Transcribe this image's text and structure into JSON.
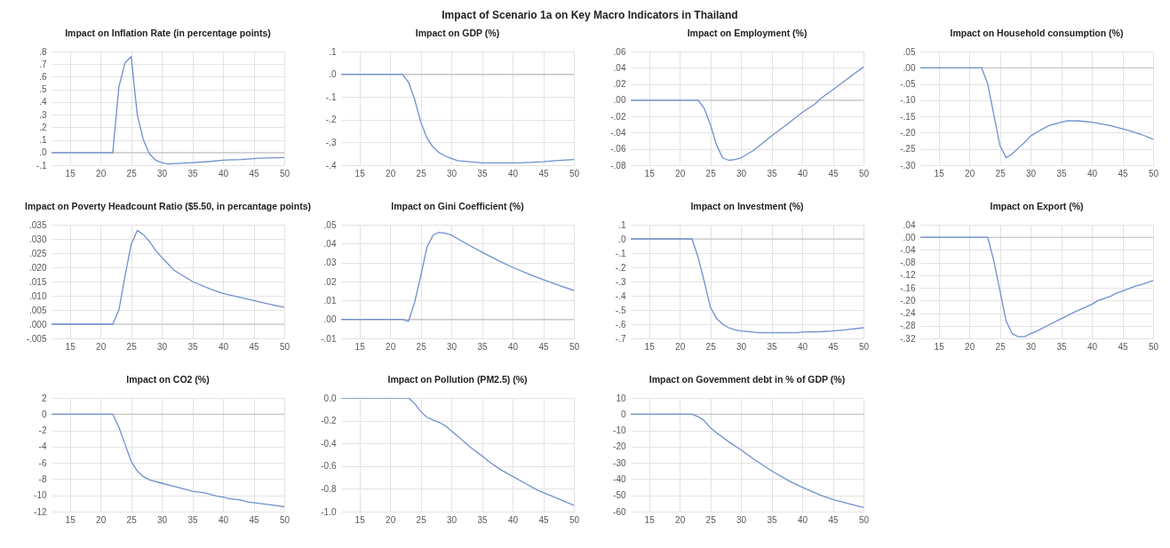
{
  "chart_data": [
    {
      "type": "other",
      "title": "Impact of Scenario 1a on Key Macro Indicators in Thailand"
    },
    {
      "type": "line",
      "title": "Impact on Inflation Rate (in percentage points)",
      "color": "#6f8fcf",
      "grid": true,
      "x": [
        12,
        22,
        23,
        24,
        25,
        26,
        27,
        28,
        29,
        30,
        31,
        33,
        35,
        38,
        40,
        43,
        46,
        50
      ],
      "values": [
        0,
        0,
        0.52,
        0.71,
        0.76,
        0.3,
        0.1,
        -0.01,
        -0.06,
        -0.08,
        -0.09,
        -0.085,
        -0.08,
        -0.07,
        -0.06,
        -0.055,
        -0.045,
        -0.04
      ],
      "xlim": [
        12,
        50
      ],
      "xticks": [
        15,
        20,
        25,
        30,
        35,
        40,
        45,
        50
      ],
      "ylim": [
        -0.1,
        0.8
      ],
      "yticks": [
        {
          "value": -0.1,
          "label": "-.1"
        },
        {
          "value": 0,
          "label": ".0"
        },
        {
          "value": 0.1,
          "label": ".1"
        },
        {
          "value": 0.2,
          "label": ".2"
        },
        {
          "value": 0.3,
          "label": ".3"
        },
        {
          "value": 0.4,
          "label": ".4"
        },
        {
          "value": 0.5,
          "label": ".5"
        },
        {
          "value": 0.6,
          "label": ".6"
        },
        {
          "value": 0.7,
          "label": ".7"
        },
        {
          "value": 0.8,
          "label": ".8"
        }
      ],
      "ref_lines": [
        {
          "axis": "y",
          "value": 0,
          "color": "#bfbfbf"
        }
      ]
    },
    {
      "type": "line",
      "title": "Impact on GDP (%)",
      "color": "#6f8fcf",
      "grid": true,
      "x": [
        12,
        22,
        23,
        24,
        25,
        26,
        27,
        28,
        29,
        30,
        31,
        33,
        35,
        41,
        45,
        47,
        50
      ],
      "values": [
        0,
        0,
        -0.035,
        -0.11,
        -0.21,
        -0.28,
        -0.32,
        -0.345,
        -0.36,
        -0.37,
        -0.38,
        -0.385,
        -0.39,
        -0.39,
        -0.385,
        -0.38,
        -0.375
      ],
      "xlim": [
        12,
        50
      ],
      "xticks": [
        15,
        20,
        25,
        30,
        35,
        40,
        45,
        50
      ],
      "ylim": [
        -0.4,
        0.1
      ],
      "yticks": [
        {
          "value": -0.4,
          "label": "-.4"
        },
        {
          "value": -0.3,
          "label": "-.3"
        },
        {
          "value": -0.2,
          "label": "-.2"
        },
        {
          "value": -0.1,
          "label": "-.1"
        },
        {
          "value": 0,
          "label": ".0"
        },
        {
          "value": 0.1,
          "label": ".1"
        }
      ],
      "ref_lines": [
        {
          "axis": "y",
          "value": 0,
          "color": "#bfbfbf"
        }
      ]
    },
    {
      "type": "line",
      "title": "Impact on Employment (%)",
      "color": "#6f8fcf",
      "grid": true,
      "x": [
        12,
        23,
        24,
        25,
        26,
        27,
        28,
        29,
        30,
        32,
        35,
        38,
        40,
        42,
        43,
        45,
        48,
        50
      ],
      "values": [
        0,
        0,
        -0.01,
        -0.03,
        -0.055,
        -0.071,
        -0.074,
        -0.073,
        -0.071,
        -0.062,
        -0.044,
        -0.027,
        -0.015,
        -0.005,
        0.002,
        0.013,
        0.03,
        0.041
      ],
      "xlim": [
        12,
        50
      ],
      "xticks": [
        15,
        20,
        25,
        30,
        35,
        40,
        45,
        50
      ],
      "ylim": [
        -0.08,
        0.06
      ],
      "yticks": [
        {
          "value": -0.08,
          "label": "-.08"
        },
        {
          "value": -0.06,
          "label": "-.06"
        },
        {
          "value": -0.04,
          "label": "-.04"
        },
        {
          "value": -0.02,
          "label": "-.02"
        },
        {
          "value": 0,
          "label": ".00"
        },
        {
          "value": 0.02,
          "label": ".02"
        },
        {
          "value": 0.04,
          "label": ".04"
        },
        {
          "value": 0.06,
          "label": ".06"
        }
      ],
      "ref_lines": [
        {
          "axis": "y",
          "value": 0,
          "color": "#bfbfbf"
        }
      ]
    },
    {
      "type": "line",
      "title": "Impact on Household consumption (%)",
      "color": "#6f8fcf",
      "grid": true,
      "x": [
        12,
        22,
        23,
        24,
        25,
        26,
        27,
        28,
        29,
        30,
        32,
        33,
        35,
        36,
        38,
        40,
        43,
        46,
        48,
        50
      ],
      "values": [
        0,
        0,
        -0.05,
        -0.145,
        -0.24,
        -0.277,
        -0.265,
        -0.247,
        -0.23,
        -0.21,
        -0.188,
        -0.178,
        -0.168,
        -0.163,
        -0.164,
        -0.168,
        -0.178,
        -0.193,
        -0.205,
        -0.22
      ],
      "xlim": [
        12,
        50
      ],
      "xticks": [
        15,
        20,
        25,
        30,
        35,
        40,
        45,
        50
      ],
      "ylim": [
        -0.3,
        0.05
      ],
      "yticks": [
        {
          "value": -0.3,
          "label": "-.30"
        },
        {
          "value": -0.25,
          "label": "-.25"
        },
        {
          "value": -0.2,
          "label": "-.20"
        },
        {
          "value": -0.15,
          "label": "-.15"
        },
        {
          "value": -0.1,
          "label": "-.10"
        },
        {
          "value": -0.05,
          "label": "-.05"
        },
        {
          "value": 0,
          "label": ".00"
        },
        {
          "value": 0.05,
          "label": ".05"
        }
      ],
      "ref_lines": [
        {
          "axis": "y",
          "value": 0,
          "color": "#bfbfbf"
        }
      ]
    },
    {
      "type": "line",
      "title": "Impact on Poverty Headcount Ratio ($5.50, in percantage points)",
      "color": "#6f8fcf",
      "grid": true,
      "x": [
        12,
        22,
        23,
        24,
        25,
        26,
        27,
        28,
        29,
        30,
        32,
        35,
        38,
        40,
        43,
        45,
        48,
        50
      ],
      "values": [
        0,
        0,
        0.005,
        0.017,
        0.028,
        0.033,
        0.0315,
        0.029,
        0.026,
        0.0235,
        0.019,
        0.015,
        0.0123,
        0.0108,
        0.0093,
        0.0083,
        0.0068,
        0.006
      ],
      "xlim": [
        12,
        50
      ],
      "xticks": [
        15,
        20,
        25,
        30,
        35,
        40,
        45,
        50
      ],
      "ylim": [
        -0.005,
        0.035
      ],
      "yticks": [
        {
          "value": -0.005,
          "label": "-.005"
        },
        {
          "value": 0,
          "label": ".000"
        },
        {
          "value": 0.005,
          "label": ".005"
        },
        {
          "value": 0.01,
          "label": ".010"
        },
        {
          "value": 0.015,
          "label": ".015"
        },
        {
          "value": 0.02,
          "label": ".020"
        },
        {
          "value": 0.025,
          "label": ".025"
        },
        {
          "value": 0.03,
          "label": ".030"
        },
        {
          "value": 0.035,
          "label": ".035"
        }
      ],
      "ref_lines": [
        {
          "axis": "y",
          "value": 0,
          "color": "#bfbfbf"
        }
      ]
    },
    {
      "type": "line",
      "title": "Impact on Gini Coefficient (%)",
      "color": "#6f8fcf",
      "grid": true,
      "x": [
        12,
        22,
        23,
        24,
        25,
        26,
        27,
        28,
        29,
        30,
        33,
        35,
        38,
        40,
        43,
        45,
        48,
        50
      ],
      "values": [
        0,
        0,
        -0.001,
        0.009,
        0.023,
        0.038,
        0.0445,
        0.046,
        0.0455,
        0.0445,
        0.039,
        0.0355,
        0.0305,
        0.0275,
        0.0235,
        0.021,
        0.0175,
        0.0153
      ],
      "xlim": [
        12,
        50
      ],
      "xticks": [
        15,
        20,
        25,
        30,
        35,
        40,
        45,
        50
      ],
      "ylim": [
        -0.01,
        0.05
      ],
      "yticks": [
        {
          "value": -0.01,
          "label": "-.01"
        },
        {
          "value": 0,
          "label": ".00"
        },
        {
          "value": 0.01,
          "label": ".01"
        },
        {
          "value": 0.02,
          "label": ".02"
        },
        {
          "value": 0.03,
          "label": ".03"
        },
        {
          "value": 0.04,
          "label": ".04"
        },
        {
          "value": 0.05,
          "label": ".05"
        }
      ],
      "ref_lines": [
        {
          "axis": "y",
          "value": 0,
          "color": "#bfbfbf"
        }
      ]
    },
    {
      "type": "line",
      "title": "Impact on Investment (%)",
      "color": "#6f8fcf",
      "grid": true,
      "x": [
        12,
        22,
        23,
        24,
        25,
        26,
        27,
        28,
        29,
        30,
        32,
        33,
        39,
        40,
        43,
        45,
        47,
        50
      ],
      "values": [
        0,
        0,
        -0.13,
        -0.3,
        -0.48,
        -0.56,
        -0.6,
        -0.625,
        -0.64,
        -0.648,
        -0.655,
        -0.66,
        -0.66,
        -0.655,
        -0.653,
        -0.648,
        -0.64,
        -0.625
      ],
      "xlim": [
        12,
        50
      ],
      "xticks": [
        15,
        20,
        25,
        30,
        35,
        40,
        45,
        50
      ],
      "ylim": [
        -0.7,
        0.1
      ],
      "yticks": [
        {
          "value": -0.7,
          "label": "-.7"
        },
        {
          "value": -0.6,
          "label": "-.6"
        },
        {
          "value": -0.5,
          "label": "-.5"
        },
        {
          "value": -0.4,
          "label": "-.4"
        },
        {
          "value": -0.3,
          "label": "-.3"
        },
        {
          "value": -0.2,
          "label": "-.2"
        },
        {
          "value": -0.1,
          "label": "-.1"
        },
        {
          "value": 0,
          "label": ".0"
        },
        {
          "value": 0.1,
          "label": ".1"
        }
      ],
      "ref_lines": [
        {
          "axis": "y",
          "value": 0,
          "color": "#bfbfbf"
        }
      ]
    },
    {
      "type": "line",
      "title": "Impact on Export (%)",
      "color": "#6f8fcf",
      "grid": true,
      "x": [
        12,
        23,
        24,
        25,
        26,
        27,
        28,
        29,
        30,
        31,
        33,
        35,
        37,
        40,
        41,
        43,
        44,
        46,
        47,
        48,
        50
      ],
      "values": [
        0,
        0,
        -0.075,
        -0.17,
        -0.265,
        -0.305,
        -0.315,
        -0.315,
        -0.305,
        -0.297,
        -0.277,
        -0.258,
        -0.238,
        -0.212,
        -0.2,
        -0.187,
        -0.177,
        -0.163,
        -0.155,
        -0.15,
        -0.137
      ],
      "xlim": [
        12,
        50
      ],
      "xticks": [
        15,
        20,
        25,
        30,
        35,
        40,
        45,
        50
      ],
      "ylim": [
        -0.32,
        0.04
      ],
      "yticks": [
        {
          "value": -0.32,
          "label": "-.32"
        },
        {
          "value": -0.28,
          "label": "-.28"
        },
        {
          "value": -0.24,
          "label": "-.24"
        },
        {
          "value": -0.2,
          "label": "-.20"
        },
        {
          "value": -0.16,
          "label": "-.16"
        },
        {
          "value": -0.12,
          "label": "-.12"
        },
        {
          "value": -0.08,
          "label": "-.08"
        },
        {
          "value": -0.04,
          "label": "-.04"
        },
        {
          "value": 0,
          "label": ".00"
        },
        {
          "value": 0.04,
          "label": ".04"
        }
      ],
      "ref_lines": [
        {
          "axis": "y",
          "value": 0,
          "color": "#bfbfbf"
        }
      ]
    },
    {
      "type": "line",
      "title": "Impact on CO2 (%)",
      "color": "#6f8fcf",
      "grid": true,
      "x": [
        12,
        22,
        23,
        24,
        25,
        26,
        27,
        28,
        30,
        32,
        33,
        35,
        37,
        39,
        40,
        41,
        43,
        44,
        46,
        48,
        50
      ],
      "values": [
        0,
        0,
        -1.6,
        -3.7,
        -5.8,
        -7,
        -7.7,
        -8.1,
        -8.5,
        -8.9,
        -9.1,
        -9.5,
        -9.7,
        -10.1,
        -10.2,
        -10.4,
        -10.6,
        -10.8,
        -11,
        -11.2,
        -11.4
      ],
      "xlim": [
        12,
        50
      ],
      "xticks": [
        15,
        20,
        25,
        30,
        35,
        40,
        45,
        50
      ],
      "ylim": [
        -12,
        2
      ],
      "yticks": [
        -12,
        -10,
        -8,
        -6,
        -4,
        -2,
        0,
        2
      ],
      "ref_lines": [
        {
          "axis": "y",
          "value": 0,
          "color": "#bfbfbf"
        }
      ]
    },
    {
      "type": "line",
      "title": "Impact on Pollution (PM2.5) (%)",
      "color": "#6f8fcf",
      "grid": true,
      "x": [
        12,
        23,
        24,
        25,
        26,
        27,
        28,
        29,
        30,
        31,
        33,
        35,
        36,
        38,
        40,
        42,
        44,
        46,
        48,
        50
      ],
      "values": [
        0,
        0,
        -0.05,
        -0.12,
        -0.17,
        -0.195,
        -0.215,
        -0.245,
        -0.29,
        -0.335,
        -0.43,
        -0.51,
        -0.555,
        -0.63,
        -0.69,
        -0.75,
        -0.81,
        -0.855,
        -0.9,
        -0.945
      ],
      "xlim": [
        12,
        50
      ],
      "xticks": [
        15,
        20,
        25,
        30,
        35,
        40,
        45,
        50
      ],
      "ylim": [
        -1,
        0
      ],
      "yticks": [
        {
          "value": -1,
          "label": "-1.0"
        },
        {
          "value": -0.8,
          "label": "-0.8"
        },
        {
          "value": -0.6,
          "label": "-0.6"
        },
        {
          "value": -0.4,
          "label": "-0.4"
        },
        {
          "value": -0.2,
          "label": "-0.2"
        },
        {
          "value": 0,
          "label": "0.0"
        }
      ]
    },
    {
      "type": "line",
      "title": "Impact on Govemment debt in % of GDP (%)",
      "color": "#6f8fcf",
      "grid": true,
      "x": [
        12,
        22,
        23,
        24,
        25,
        26,
        28,
        30,
        32,
        35,
        38,
        40,
        43,
        45,
        48,
        50
      ],
      "values": [
        0,
        0,
        -1.5,
        -4,
        -8.5,
        -11.5,
        -17,
        -22,
        -27.5,
        -35,
        -41.5,
        -45,
        -50,
        -52.5,
        -55.5,
        -57.5
      ],
      "xlim": [
        12,
        50
      ],
      "xticks": [
        15,
        20,
        25,
        30,
        35,
        40,
        45,
        50
      ],
      "ylim": [
        -60,
        10
      ],
      "yticks": [
        -60,
        -50,
        -40,
        -30,
        -20,
        -10,
        0,
        10
      ],
      "ref_lines": [
        {
          "axis": "y",
          "value": 0,
          "color": "#bfbfbf"
        }
      ]
    }
  ]
}
